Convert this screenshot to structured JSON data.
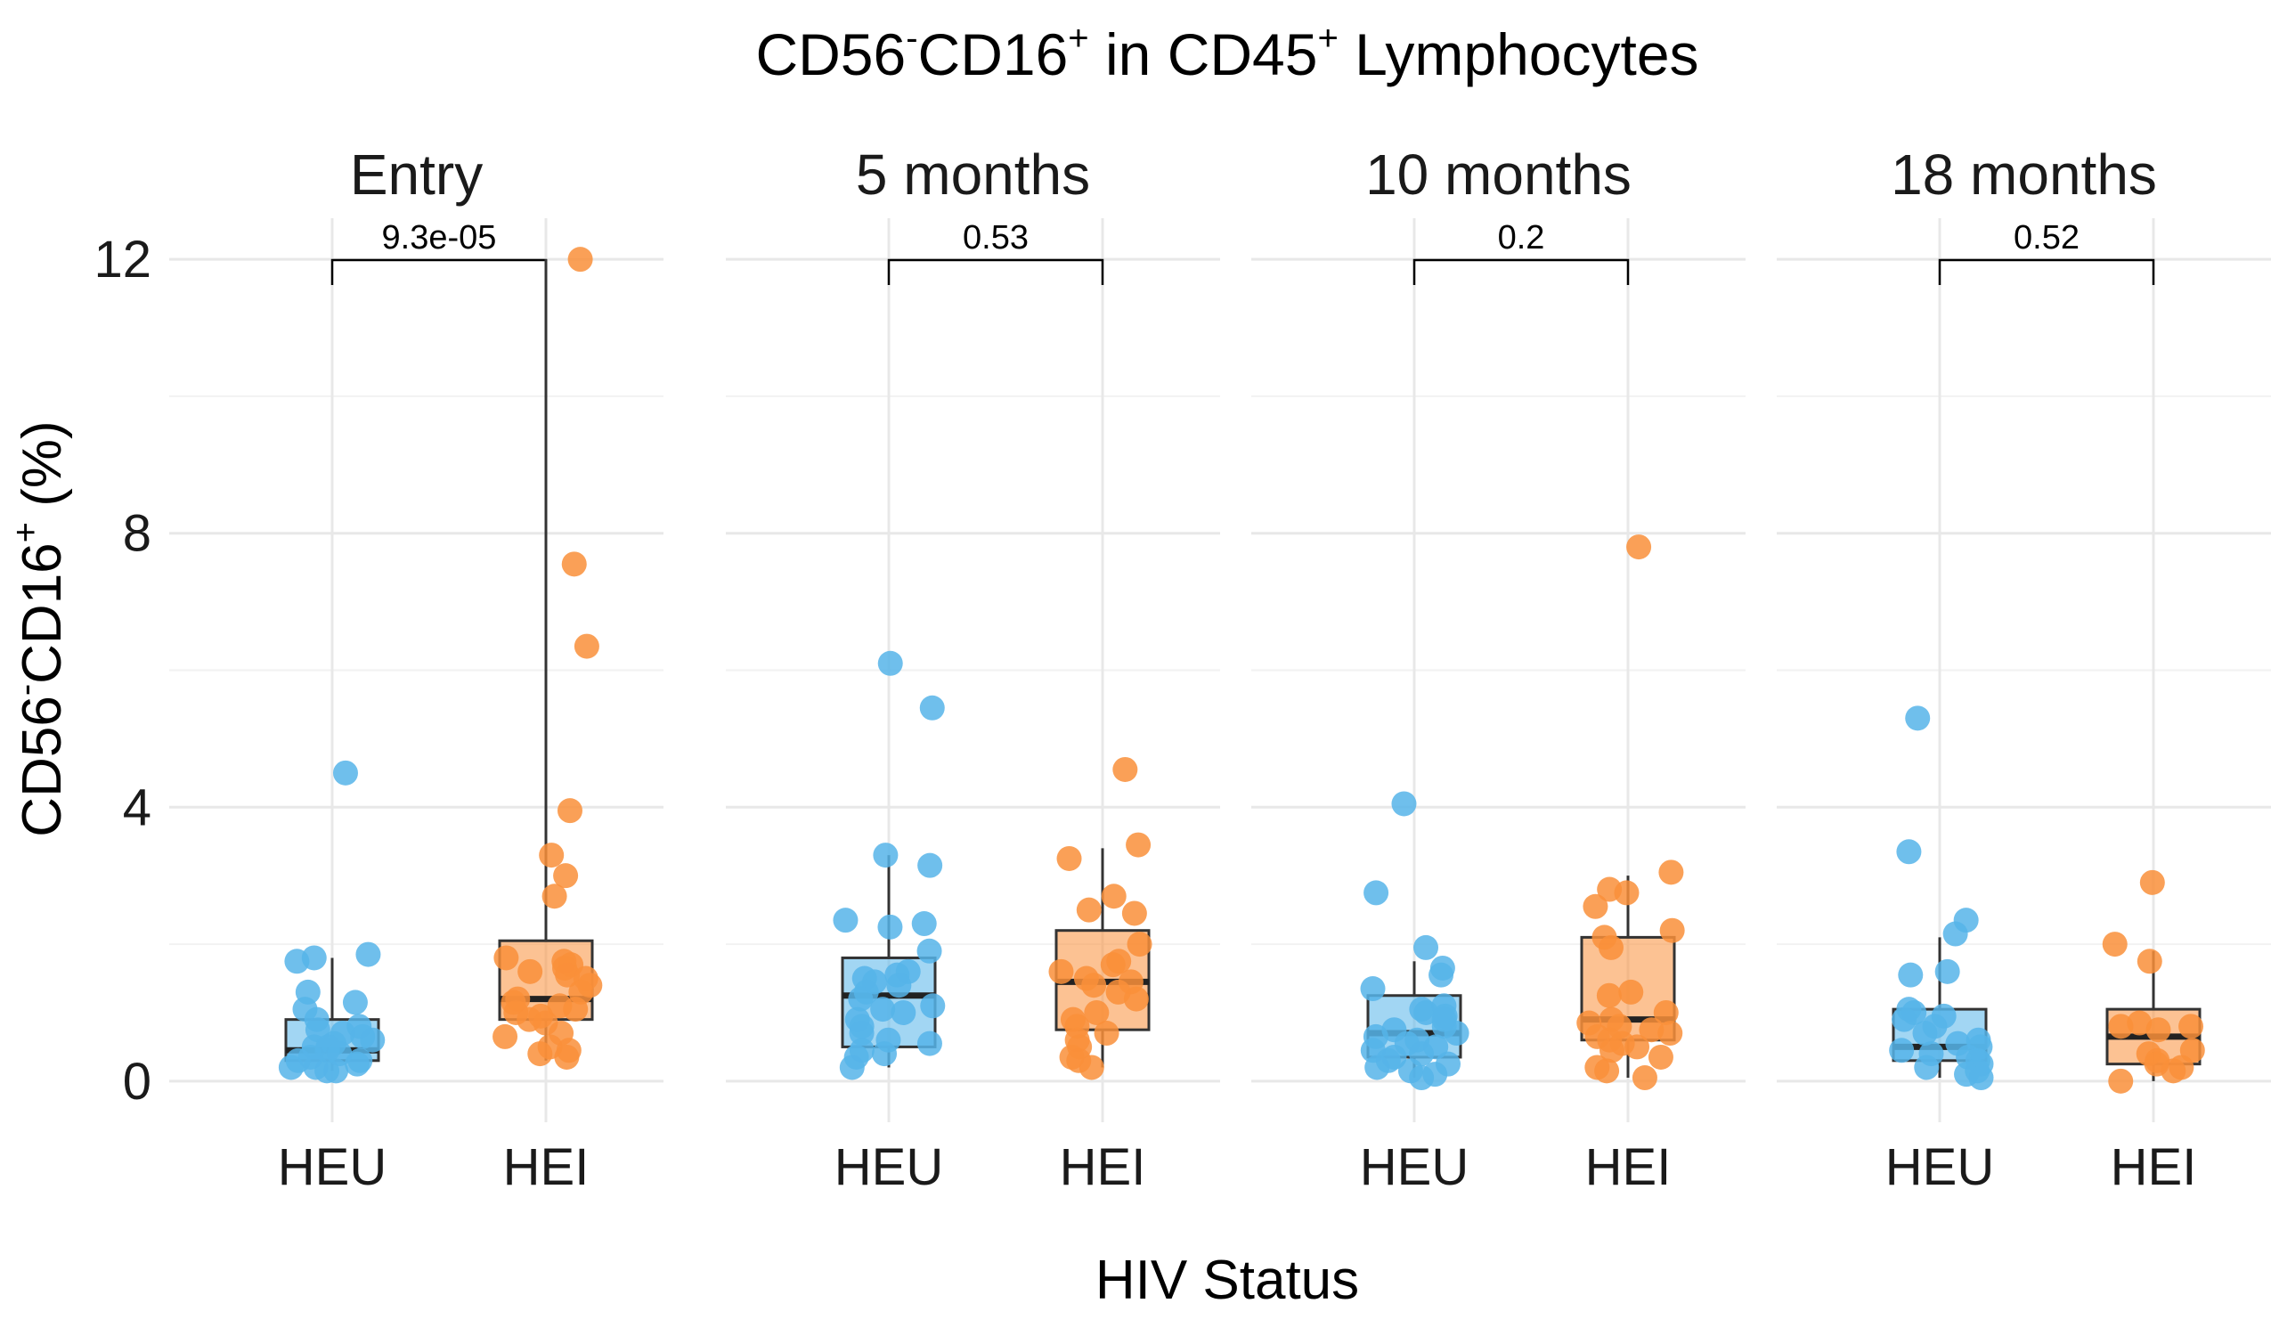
{
  "chart_data": {
    "type": "box",
    "title": {
      "base1": "CD56",
      "sup1": "-",
      "base2": "CD16",
      "sup2": "+",
      "base3": " in CD45",
      "sup3": "+",
      "base4": " Lymphocytes"
    },
    "ylabel": {
      "base1": "CD56",
      "sup1": "-",
      "base2": "CD16",
      "sup2": "+",
      "base3": " (%)"
    },
    "xlabel": "HIV Status",
    "ylim": [
      -0.6,
      12.6
    ],
    "yticks": [
      "0",
      "4",
      "8",
      "12"
    ],
    "ytick_values": [
      0,
      4,
      8,
      12
    ],
    "grid": true,
    "legend": "none",
    "colors": {
      "HEU": "#56b4e9",
      "HEI": "#f98f3a"
    },
    "panels": [
      {
        "label": "Entry",
        "p_value": "9.3e-05",
        "groups": [
          {
            "name": "HEU",
            "box": {
              "min": 0.15,
              "q1": 0.3,
              "median": 0.45,
              "q3": 0.9,
              "max": 1.8
            },
            "points": [
              4.5,
              1.85,
              1.8,
              1.75,
              1.3,
              1.15,
              1.05,
              0.9,
              0.8,
              0.75,
              0.7,
              0.65,
              0.6,
              0.55,
              0.5,
              0.5,
              0.45,
              0.4,
              0.35,
              0.3,
              0.3,
              0.25,
              0.2,
              0.2,
              0.15,
              0.15
            ]
          },
          {
            "name": "HEI",
            "box": {
              "min": 0.3,
              "q1": 0.9,
              "median": 1.2,
              "q3": 2.05,
              "max": 12.0
            },
            "points": [
              12.0,
              7.55,
              6.35,
              3.95,
              3.3,
              3.0,
              2.7,
              1.8,
              1.75,
              1.7,
              1.65,
              1.6,
              1.55,
              1.5,
              1.4,
              1.3,
              1.2,
              1.15,
              1.1,
              1.05,
              1.0,
              0.95,
              0.9,
              0.85,
              0.7,
              0.65,
              0.5,
              0.45,
              0.4,
              0.35
            ]
          }
        ]
      },
      {
        "label": "5 months",
        "p_value": "0.53",
        "groups": [
          {
            "name": "HEU",
            "box": {
              "min": 0.2,
              "q1": 0.5,
              "median": 1.25,
              "q3": 1.8,
              "max": 3.3
            },
            "points": [
              6.1,
              5.45,
              3.3,
              3.15,
              2.35,
              2.3,
              2.25,
              1.9,
              1.6,
              1.55,
              1.5,
              1.45,
              1.4,
              1.3,
              1.2,
              1.1,
              1.05,
              1.0,
              0.9,
              0.8,
              0.7,
              0.6,
              0.55,
              0.45,
              0.4,
              0.35,
              0.2
            ]
          },
          {
            "name": "HEI",
            "box": {
              "min": 0.2,
              "q1": 0.75,
              "median": 1.45,
              "q3": 2.2,
              "max": 3.4
            },
            "points": [
              4.55,
              3.45,
              3.25,
              2.7,
              2.5,
              2.45,
              2.0,
              1.75,
              1.7,
              1.6,
              1.5,
              1.45,
              1.4,
              1.3,
              1.2,
              1.0,
              0.9,
              0.8,
              0.7,
              0.6,
              0.5,
              0.35,
              0.3,
              0.2
            ]
          }
        ]
      },
      {
        "label": "10 months",
        "p_value": "0.2",
        "groups": [
          {
            "name": "HEU",
            "box": {
              "min": 0.05,
              "q1": 0.35,
              "median": 0.7,
              "q3": 1.25,
              "max": 1.75
            },
            "points": [
              4.05,
              2.75,
              1.95,
              1.65,
              1.55,
              1.35,
              1.1,
              1.05,
              1.0,
              0.95,
              0.9,
              0.8,
              0.75,
              0.7,
              0.65,
              0.6,
              0.55,
              0.5,
              0.45,
              0.4,
              0.35,
              0.3,
              0.25,
              0.2,
              0.15,
              0.1,
              0.05
            ]
          },
          {
            "name": "HEI",
            "box": {
              "min": 0.05,
              "q1": 0.6,
              "median": 0.9,
              "q3": 2.1,
              "max": 3.0
            },
            "points": [
              7.8,
              3.05,
              2.8,
              2.75,
              2.55,
              2.2,
              2.1,
              1.95,
              1.3,
              1.25,
              1.0,
              0.9,
              0.85,
              0.8,
              0.75,
              0.7,
              0.65,
              0.6,
              0.55,
              0.5,
              0.45,
              0.35,
              0.2,
              0.15,
              0.05
            ]
          }
        ]
      },
      {
        "label": "18 months",
        "p_value": "0.52",
        "groups": [
          {
            "name": "HEU",
            "box": {
              "min": 0.05,
              "q1": 0.3,
              "median": 0.5,
              "q3": 1.05,
              "max": 2.1
            },
            "points": [
              5.3,
              3.35,
              2.35,
              2.15,
              1.6,
              1.55,
              1.05,
              1.0,
              0.95,
              0.9,
              0.8,
              0.7,
              0.6,
              0.55,
              0.5,
              0.45,
              0.4,
              0.35,
              0.3,
              0.25,
              0.2,
              0.15,
              0.1,
              0.05
            ]
          },
          {
            "name": "HEI",
            "box": {
              "min": 0.0,
              "q1": 0.25,
              "median": 0.65,
              "q3": 1.05,
              "max": 1.9
            },
            "points": [
              2.9,
              2.0,
              1.75,
              0.85,
              0.8,
              0.8,
              0.75,
              0.45,
              0.4,
              0.3,
              0.25,
              0.2,
              0.15,
              0.0
            ]
          }
        ]
      }
    ]
  }
}
